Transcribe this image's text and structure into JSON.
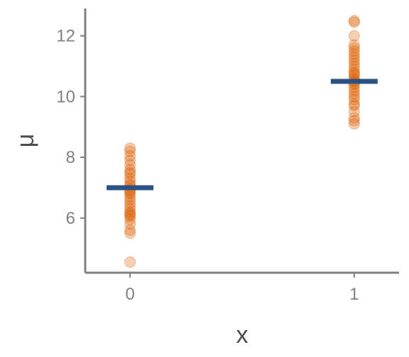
{
  "chart_data": {
    "type": "scatter",
    "xlabel": "x",
    "ylabel": "μ",
    "x_ticks": [
      "0",
      "1"
    ],
    "y_ticks": [
      6,
      8,
      10,
      12
    ],
    "xlim": [
      -0.2,
      1.2
    ],
    "ylim": [
      4.2,
      12.9
    ],
    "grid": false,
    "point_color": "#d95f02",
    "mean_color": "#2b5285",
    "axis_color": "#808080",
    "groups": [
      {
        "x": 0,
        "mean": 7.0,
        "points": [
          8.3,
          8.2,
          8.05,
          7.9,
          7.75,
          7.6,
          7.5,
          7.45,
          7.3,
          7.2,
          7.1,
          7.05,
          6.95,
          6.9,
          6.85,
          6.8,
          6.7,
          6.6,
          6.5,
          6.4,
          6.3,
          6.2,
          6.15,
          6.1,
          6.05,
          5.95,
          5.8,
          5.6,
          5.5,
          4.55
        ]
      },
      {
        "x": 1,
        "mean": 10.5,
        "points": [
          12.5,
          12.45,
          12.0,
          11.7,
          11.6,
          11.5,
          11.4,
          11.3,
          11.2,
          11.1,
          11.0,
          10.9,
          10.8,
          10.75,
          10.7,
          10.6,
          10.55,
          10.5,
          10.45,
          10.4,
          10.3,
          10.2,
          10.1,
          10.0,
          9.9,
          9.75,
          9.7,
          9.5,
          9.3,
          9.2,
          9.1
        ]
      }
    ]
  }
}
